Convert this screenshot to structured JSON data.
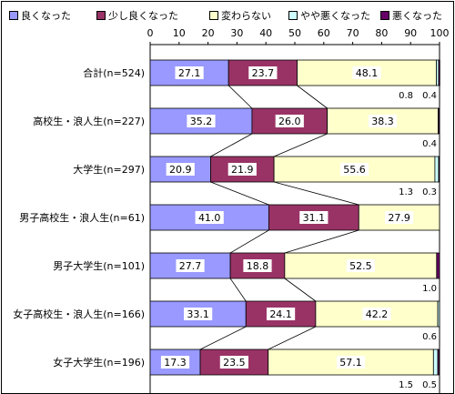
{
  "chart_data": {
    "type": "bar",
    "orientation": "horizontal",
    "stacked": true,
    "title": "",
    "xlabel": "",
    "ylabel": "",
    "xlim": [
      0,
      100
    ],
    "xticks": [
      "0",
      "10",
      "20",
      "30",
      "40",
      "50",
      "60",
      "70",
      "80",
      "90",
      "100"
    ],
    "categories": [
      "合計(n=524)",
      "高校生・浪人生(n=227)",
      "大学生(n=297)",
      "男子高校生・浪人生(n=61)",
      "男子大学生(n=101)",
      "女子高校生・浪人生(n=166)",
      "女子大学生(n=196)"
    ],
    "series": [
      {
        "name": "良くなった",
        "color": "#9999ff",
        "values": [
          27.1,
          35.2,
          20.9,
          41.0,
          27.7,
          33.1,
          17.3
        ]
      },
      {
        "name": "少し良くなった",
        "color": "#993366",
        "values": [
          23.7,
          26.0,
          21.9,
          31.1,
          18.8,
          24.1,
          23.5
        ]
      },
      {
        "name": "変わらない",
        "color": "#ffffcc",
        "values": [
          48.1,
          38.3,
          55.6,
          27.9,
          52.5,
          42.2,
          57.1
        ]
      },
      {
        "name": "やや悪くなった",
        "color": "#ccffff",
        "values": [
          0.8,
          0.0,
          1.3,
          0.0,
          0.0,
          0.6,
          1.5
        ]
      },
      {
        "name": "悪くなった",
        "color": "#660066",
        "values": [
          0.4,
          0.4,
          0.3,
          0.0,
          1.0,
          0.0,
          0.5
        ]
      }
    ],
    "data_labels": [
      {
        "inside": [
          "27.1",
          "23.7",
          "48.1"
        ],
        "below": [
          "0.8",
          "0.4"
        ]
      },
      {
        "inside": [
          "35.2",
          "26.0",
          "38.3"
        ],
        "below": [
          "0.4"
        ]
      },
      {
        "inside": [
          "20.9",
          "21.9",
          "55.6"
        ],
        "below": [
          "1.3",
          "0.3"
        ]
      },
      {
        "inside": [
          "41.0",
          "31.1",
          "27.9"
        ],
        "below": []
      },
      {
        "inside": [
          "27.7",
          "18.8",
          "52.5"
        ],
        "below": [
          "1.0"
        ]
      },
      {
        "inside": [
          "33.1",
          "24.1",
          "42.2"
        ],
        "below": [
          "0.6"
        ]
      },
      {
        "inside": [
          "17.3",
          "23.5",
          "57.1"
        ],
        "below": [
          "1.5",
          "0.5"
        ]
      }
    ],
    "grid": false,
    "connector_lines": true,
    "legend_position": "top"
  }
}
